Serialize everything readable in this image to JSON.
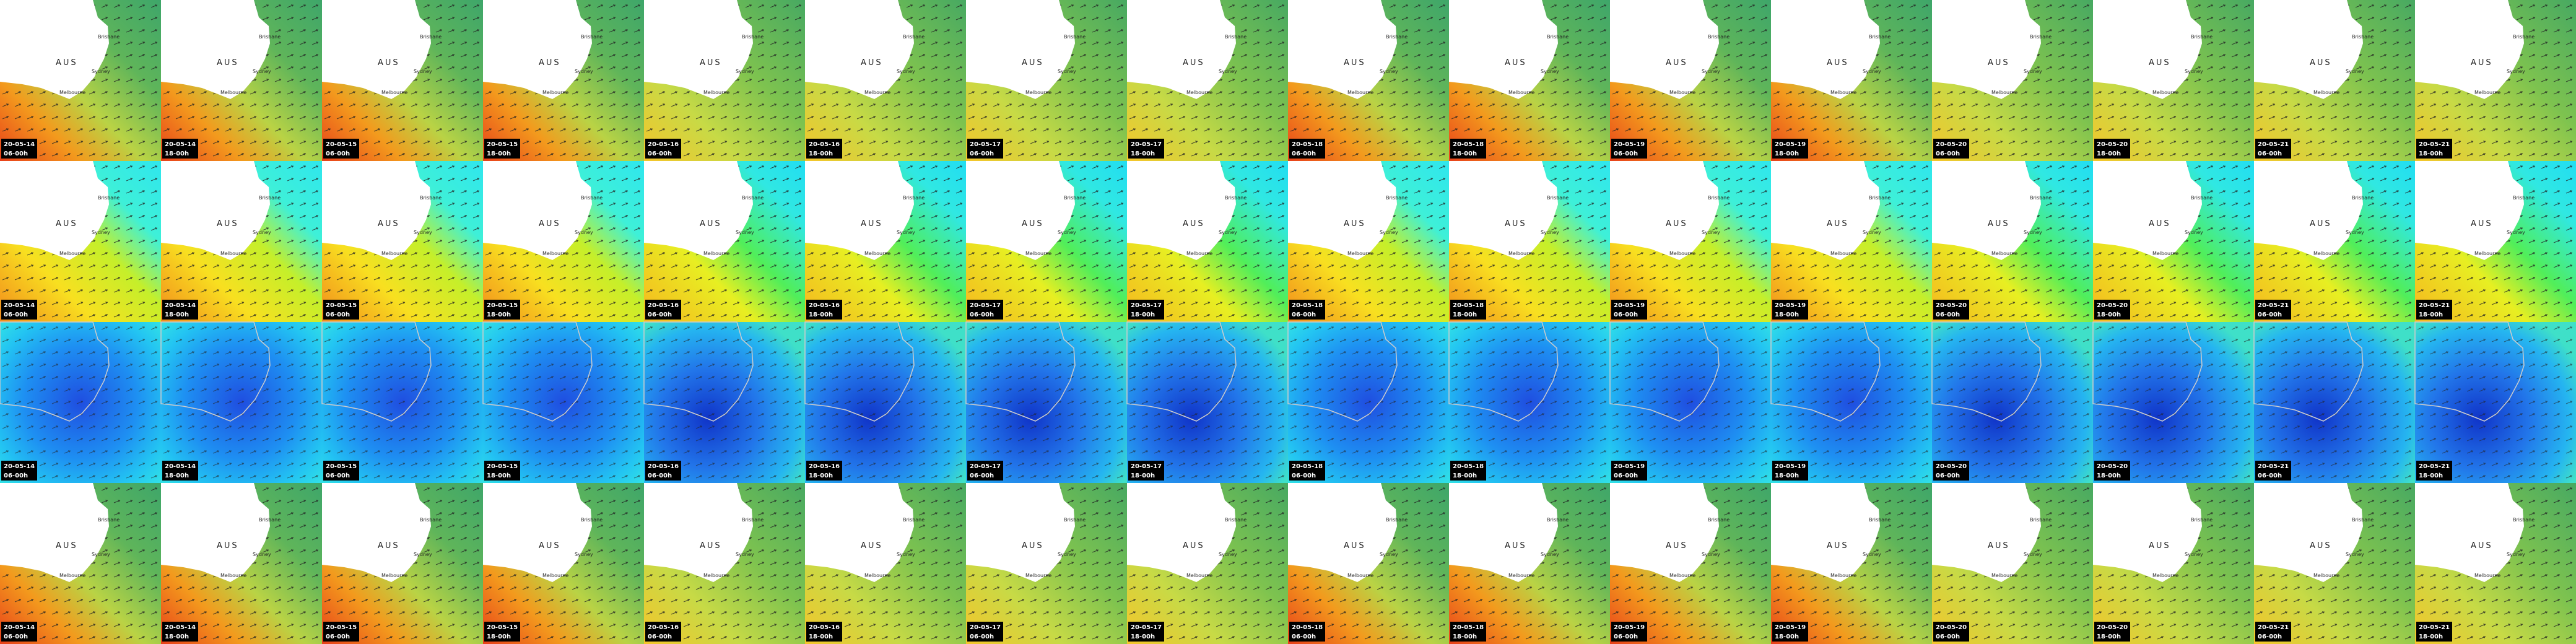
{
  "map_labels": {
    "country": "AUS",
    "city_north": "Brisbane",
    "city_mid": "Sydney",
    "city_south": "Melbourne"
  },
  "tiles": [
    {
      "date": "20-05-14",
      "time": "06-00h"
    },
    {
      "date": "20-05-14",
      "time": "18-00h"
    },
    {
      "date": "20-05-15",
      "time": "06-00h"
    },
    {
      "date": "20-05-15",
      "time": "18-00h"
    },
    {
      "date": "20-05-16",
      "time": "06-00h"
    },
    {
      "date": "20-05-16",
      "time": "18-00h"
    },
    {
      "date": "20-05-17",
      "time": "06-00h"
    },
    {
      "date": "20-05-17",
      "time": "18-00h"
    },
    {
      "date": "20-05-18",
      "time": "06-00h"
    },
    {
      "date": "20-05-18",
      "time": "18-00h"
    },
    {
      "date": "20-05-19",
      "time": "06-00h"
    },
    {
      "date": "20-05-19",
      "time": "18-00h"
    },
    {
      "date": "20-05-20",
      "time": "06-00h"
    },
    {
      "date": "20-05-20",
      "time": "18-00h"
    },
    {
      "date": "20-05-21",
      "time": "06-00h"
    },
    {
      "date": "20-05-21",
      "time": "18-00h"
    }
  ]
}
